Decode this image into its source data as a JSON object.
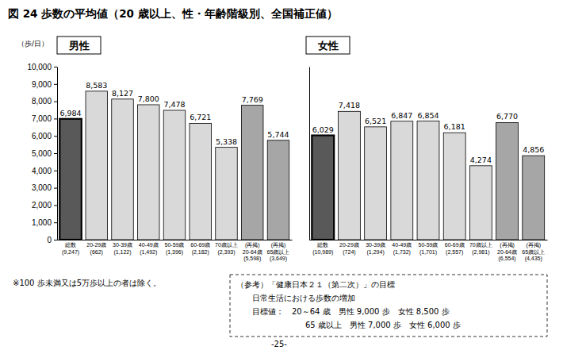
{
  "figure": {
    "title": "図 24 歩数の平均値（20 歳以上、性・年齢階級別、全国補正値）",
    "y_label": "（歩/日）",
    "note": "※100 歩未満又は5万歩以上の者は除く。",
    "reference": [
      "（参考）「健康日本２１（第二次）」の目標",
      "日常生活における歩数の増加",
      "目標値：　20～64 歳　男性 9,000 歩　女性 8,500 歩",
      "65 歳以上　男性 7,000 歩　女性 6,000 歩"
    ],
    "page": "-25-"
  },
  "chart_data": [
    {
      "type": "bar",
      "title": "男性",
      "categories": [
        "総数\n(9,247)",
        "20-29歳\n(662)",
        "30-39歳\n(1,122)",
        "40-49歳\n(1,492)",
        "50-59歳\n(1,396)",
        "60-69歳\n(2,182)",
        "70歳以上\n(2,393)",
        "(再掲)\n20-64歳\n(5,598)",
        "(再掲)\n65歳以上\n(3,649)"
      ],
      "values": [
        6984,
        8583,
        8127,
        7800,
        7478,
        6721,
        5338,
        7769,
        5744
      ],
      "value_labels": [
        "6,984",
        "8,583",
        "8,127",
        "7,800",
        "7,478",
        "6,721",
        "5,338",
        "7,769",
        "5,744"
      ],
      "colors": [
        "#595959",
        "#d9d9d9",
        "#d9d9d9",
        "#d9d9d9",
        "#d9d9d9",
        "#d9d9d9",
        "#d9d9d9",
        "#a6a6a6",
        "#a6a6a6"
      ],
      "ylim": [
        0,
        10000
      ],
      "yticks": [
        0,
        {
          "value": 1000,
          "label": "1,000"
        },
        {
          "value": 2000,
          "label": "2,000"
        },
        {
          "value": 3000,
          "label": "3,000"
        },
        {
          "value": 4000,
          "label": "4,000"
        },
        {
          "value": 5000,
          "label": "5,000"
        },
        {
          "value": 6000,
          "label": "6,000"
        },
        {
          "value": 7000,
          "label": "7,000"
        },
        {
          "value": 8000,
          "label": "8,000"
        },
        {
          "value": 9000,
          "label": "9,000"
        },
        {
          "value": 10000,
          "label": "10,000"
        }
      ],
      "grid": false,
      "data_labels": true
    },
    {
      "type": "bar",
      "title": "女性",
      "categories": [
        "総数\n(10,989)",
        "20-29歳\n(724)",
        "30-39歳\n(1,294)",
        "40-49歳\n(1,732)",
        "50-59歳\n(1,701)",
        "60-69歳\n(2,557)",
        "70歳以上\n(2,981)",
        "(再掲)\n20-64歳\n(6,554)",
        "(再掲)\n65歳以上\n(4,435)"
      ],
      "values": [
        6029,
        7418,
        6521,
        6847,
        6854,
        6181,
        4274,
        6770,
        4856
      ],
      "value_labels": [
        "6,029",
        "7,418",
        "6,521",
        "6,847",
        "6,854",
        "6,181",
        "4,274",
        "6,770",
        "4,856"
      ],
      "colors": [
        "#595959",
        "#d9d9d9",
        "#d9d9d9",
        "#d9d9d9",
        "#d9d9d9",
        "#d9d9d9",
        "#d9d9d9",
        "#a6a6a6",
        "#a6a6a6"
      ],
      "ylim": [
        0,
        10000
      ],
      "grid": false,
      "data_labels": true,
      "tick_labels": "x"
    }
  ]
}
